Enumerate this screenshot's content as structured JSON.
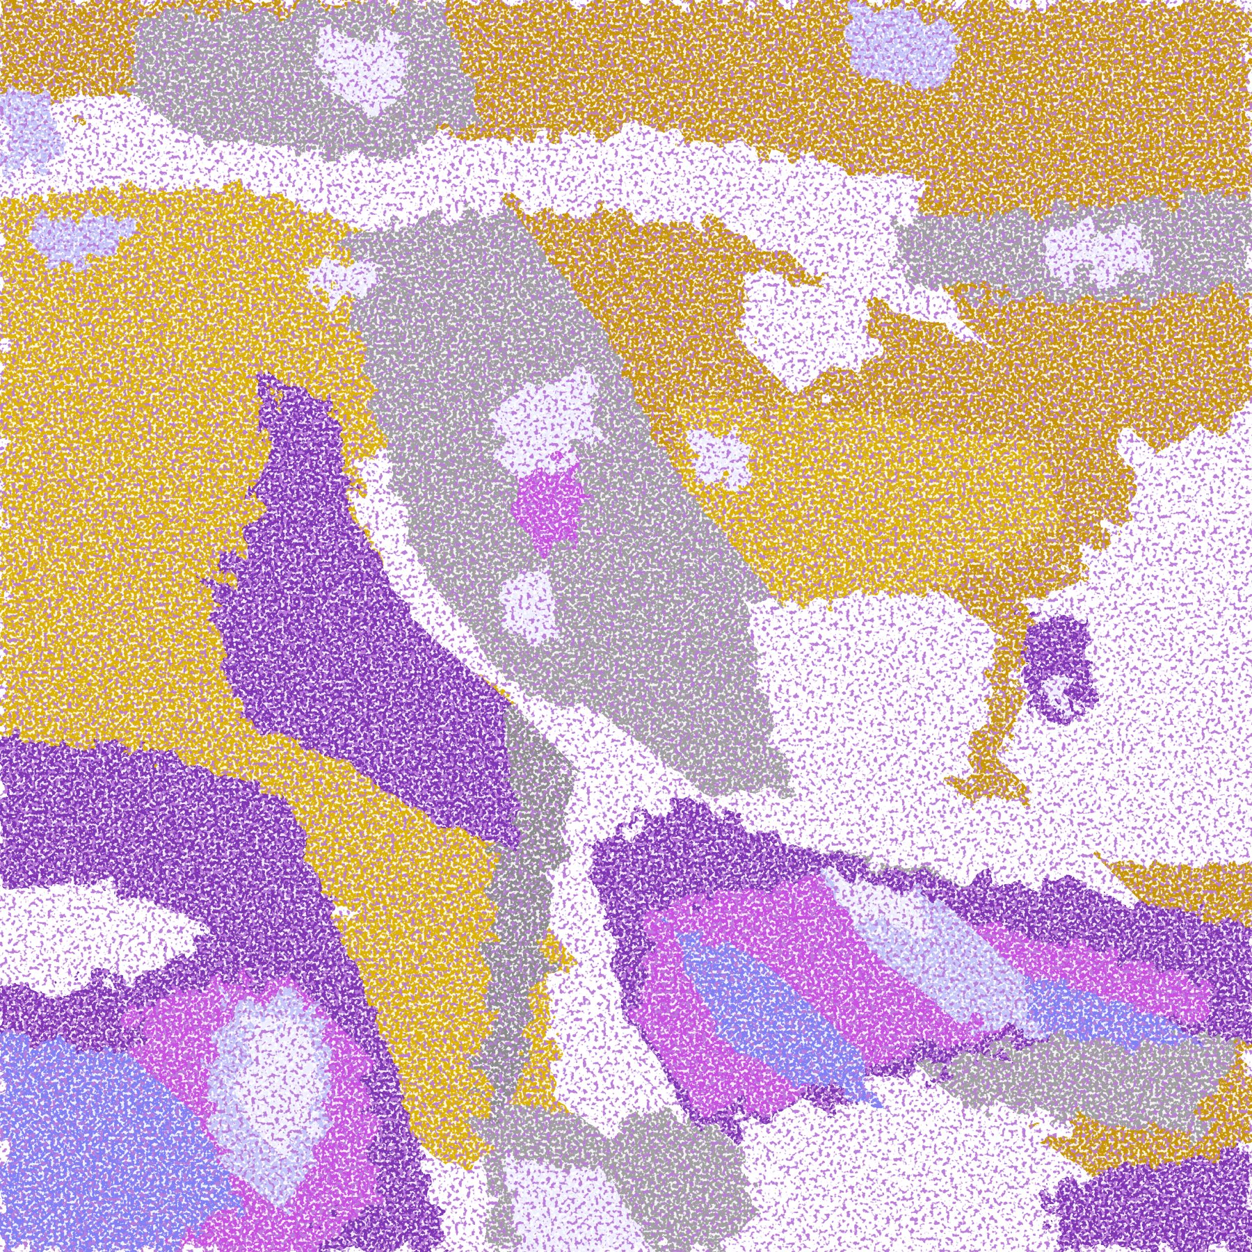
{
  "map": {
    "kind": "satellite cloud-type classification image",
    "palette": {
      "clear": "#ffffff",
      "gold_light": "#dcb400",
      "gold_dark": "#c89600",
      "gray": "#a0a0a0",
      "gray_dark": "#8c8c8c",
      "purple": "#8034b4",
      "magenta": "#c850e0",
      "blue_violet": "#8080f4",
      "lavender": "#c4c4f8",
      "pale": "#eeeefe"
    }
  }
}
